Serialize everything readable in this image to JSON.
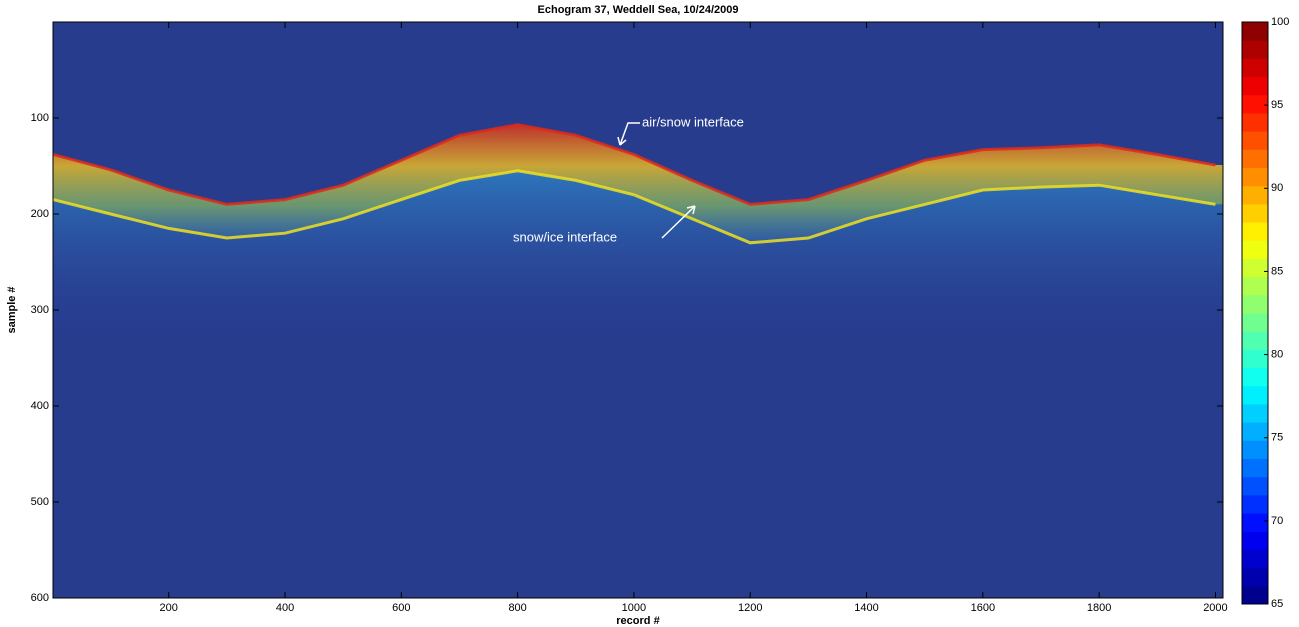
{
  "chart_data": {
    "type": "echogram",
    "title": "Echogram 37, Weddell Sea, 10/24/2009",
    "x_label": "record #",
    "y_label": "sample #",
    "x": [
      1,
      100,
      200,
      300,
      400,
      500,
      600,
      700,
      800,
      900,
      1000,
      1100,
      1200,
      1300,
      1400,
      1500,
      1600,
      1700,
      1800,
      1900,
      2000
    ],
    "series": [
      {
        "name": "air/snow interface",
        "color": "#e02a1a",
        "values": [
          138,
          154,
          175,
          190,
          185,
          170,
          144,
          118,
          107,
          118,
          138,
          165,
          190,
          185,
          165,
          144,
          133,
          131,
          128,
          138,
          149
        ]
      },
      {
        "name": "snow/ice interface",
        "color": "#f0e020",
        "values": [
          185,
          200,
          215,
          225,
          220,
          205,
          185,
          165,
          155,
          165,
          180,
          205,
          230,
          225,
          205,
          190,
          175,
          172,
          170,
          180,
          190
        ]
      }
    ],
    "xlim": [
      1,
      2013
    ],
    "xticks": [
      200,
      400,
      600,
      800,
      1000,
      1200,
      1400,
      1600,
      1800,
      2000
    ],
    "ylim": [
      0,
      600
    ],
    "y_reversed": true,
    "yticks": [
      100,
      200,
      300,
      400,
      500,
      600
    ],
    "clim": [
      65,
      100
    ],
    "cticks": [
      65,
      70,
      75,
      80,
      85,
      90,
      95,
      100
    ]
  }
}
